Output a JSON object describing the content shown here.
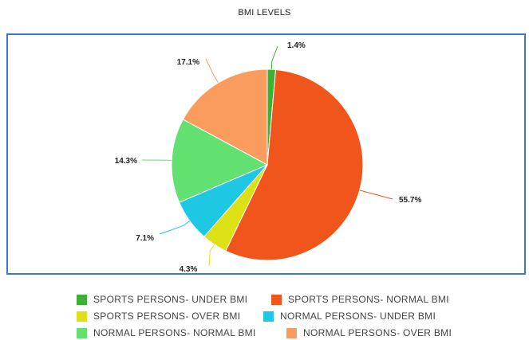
{
  "chart_data": {
    "type": "pie",
    "title": "BMI LEVELS",
    "slices": [
      {
        "name": "SPORTS PERSONS- UNDER BMI",
        "value": 1.4,
        "label": "1.4%",
        "color": "#3cb135"
      },
      {
        "name": "SPORTS PERSONS- NORMAL BMI",
        "value": 55.7,
        "label": "55.7%",
        "color": "#f0561c"
      },
      {
        "name": "SPORTS PERSONS- OVER BMI",
        "value": 4.3,
        "label": "4.3%",
        "color": "#dde014"
      },
      {
        "name": "NORMAL PERSONS- UNDER BMI",
        "value": 7.1,
        "label": "7.1%",
        "color": "#1ec8e2"
      },
      {
        "name": "NORMAL PERSONS- NORMAL BMI",
        "value": 14.3,
        "label": "14.3%",
        "color": "#62e070"
      },
      {
        "name": "NORMAL PERSONS- OVER BMI",
        "value": 17.1,
        "label": "17.1%",
        "color": "#fa9c5e"
      }
    ],
    "legend_position": "bottom"
  }
}
